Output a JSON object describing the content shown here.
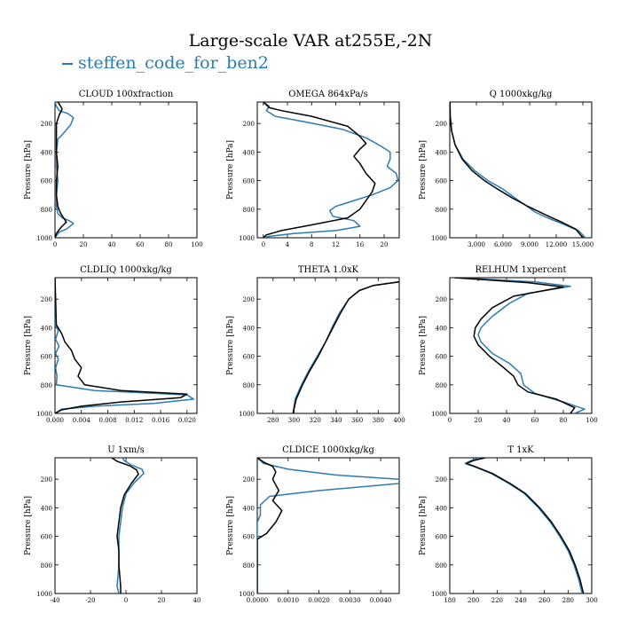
{
  "title": "Large-scale VAR at255E,-2N",
  "legend": {
    "label": "steffen_code_for_ben2",
    "color": "#2b7bb1"
  },
  "colors": {
    "case": "#2b7bb1",
    "reference": "#000000"
  },
  "chart_data": [
    {
      "type": "line",
      "title": "CLOUD  100xfraction",
      "ylabel": "Pressure [hPa]",
      "xlim": [
        0,
        100
      ],
      "ylim": [
        1000,
        50
      ],
      "xticks": [
        0,
        20,
        40,
        60,
        80,
        100
      ],
      "xtick_labels": [
        "0",
        "20",
        "40",
        "60",
        "80",
        "100"
      ],
      "yticks": [
        200,
        400,
        600,
        800,
        1000
      ],
      "ytick_labels": [
        "200",
        "400",
        "600",
        "800",
        "1000"
      ],
      "series": [
        {
          "color": "#2b7bb1",
          "x": [
            0,
            1,
            3,
            9,
            13,
            11,
            5,
            2,
            1,
            1,
            2,
            1,
            1,
            2,
            5,
            10,
            13,
            8,
            3,
            1,
            0
          ],
          "y": [
            50,
            80,
            110,
            130,
            160,
            210,
            280,
            310,
            400,
            500,
            600,
            700,
            780,
            830,
            860,
            880,
            900,
            940,
            960,
            985,
            1000
          ]
        },
        {
          "color": "#000000",
          "x": [
            2,
            4,
            5,
            3,
            1,
            1,
            1,
            2,
            1,
            1,
            2,
            4,
            6,
            8,
            4,
            1,
            0
          ],
          "y": [
            50,
            80,
            100,
            140,
            200,
            300,
            400,
            500,
            600,
            700,
            780,
            830,
            860,
            890,
            930,
            970,
            1000
          ]
        }
      ]
    },
    {
      "type": "line",
      "title": "OMEGA  864xPa/s",
      "ylabel": "Pressure [hPa]",
      "xlim": [
        -1,
        22.5
      ],
      "ylim": [
        1000,
        50
      ],
      "xticks": [
        0,
        4,
        8,
        12,
        16,
        20
      ],
      "xtick_labels": [
        "0",
        "4",
        "8",
        "12",
        "16",
        "20"
      ],
      "yticks": [
        200,
        400,
        600,
        800,
        1000
      ],
      "ytick_labels": [
        "200",
        "400",
        "600",
        "800",
        "1000"
      ],
      "series": [
        {
          "color": "#2b7bb1",
          "x": [
            0,
            1,
            0.5,
            2,
            7,
            13,
            17,
            19.5,
            21,
            21,
            20.5,
            22,
            22.3,
            21,
            18,
            15,
            12,
            11,
            11.5,
            15,
            16,
            12,
            5,
            1,
            0
          ],
          "y": [
            50,
            80,
            110,
            150,
            190,
            240,
            300,
            360,
            400,
            450,
            500,
            550,
            600,
            650,
            700,
            740,
            780,
            810,
            850,
            880,
            920,
            950,
            970,
            990,
            1000
          ]
        },
        {
          "color": "#000000",
          "x": [
            0,
            0.5,
            1,
            3,
            8,
            14,
            16,
            17,
            16,
            15,
            16,
            17,
            18.5,
            18,
            17,
            16,
            14,
            8,
            3,
            0.5,
            0
          ],
          "y": [
            50,
            70,
            90,
            110,
            150,
            220,
            290,
            340,
            380,
            430,
            480,
            550,
            620,
            680,
            740,
            800,
            860,
            910,
            950,
            980,
            1000
          ]
        }
      ]
    },
    {
      "type": "line",
      "title": "Q  1000xkg/kg",
      "ylabel": "Pressure [hPa]",
      "xlim": [
        0,
        16
      ],
      "ylim": [
        1000,
        50
      ],
      "xticks": [
        3,
        6,
        9,
        12,
        15
      ],
      "xtick_labels": [
        "3.000",
        "6.000",
        "9.000",
        "12.000",
        "15.000"
      ],
      "yticks": [
        200,
        400,
        600,
        800,
        1000
      ],
      "ytick_labels": [
        "200",
        "400",
        "600",
        "800",
        "1000"
      ],
      "series": [
        {
          "color": "#2b7bb1",
          "x": [
            0.02,
            0.05,
            0.2,
            0.6,
            1.5,
            2.8,
            4.3,
            6.0,
            7.3,
            8.5,
            9.6,
            11.0,
            13.0,
            14.5,
            15.3
          ],
          "y": [
            50,
            150,
            250,
            350,
            450,
            530,
            600,
            660,
            720,
            770,
            820,
            860,
            910,
            950,
            1000
          ]
        },
        {
          "color": "#000000",
          "x": [
            0.02,
            0.05,
            0.2,
            0.6,
            1.4,
            2.5,
            3.9,
            5.4,
            7.0,
            8.8,
            10.8,
            12.6,
            14.2,
            15.0
          ],
          "y": [
            50,
            150,
            250,
            350,
            450,
            530,
            600,
            660,
            720,
            780,
            840,
            890,
            940,
            1000
          ]
        }
      ]
    },
    {
      "type": "line",
      "title": "CLDLIQ  1000xkg/kg",
      "ylabel": "Pressure [hPa]",
      "xlim": [
        0,
        0.0215
      ],
      "ylim": [
        1000,
        50
      ],
      "xticks": [
        0,
        0.004,
        0.008,
        0.012,
        0.016,
        0.02
      ],
      "xtick_labels": [
        "0.000",
        "0.004",
        "0.008",
        "0.012",
        "0.016",
        "0.020"
      ],
      "yticks": [
        200,
        400,
        600,
        800,
        1000
      ],
      "ytick_labels": [
        "200",
        "400",
        "600",
        "800",
        "1000"
      ],
      "series": [
        {
          "color": "#2b7bb1",
          "x": [
            0,
            0,
            0.0005,
            0.0001,
            0.0006,
            0.0001,
            0.0005,
            0.0001,
            0.0003,
            0.0002,
            0.006,
            0.02,
            0.021,
            0.015,
            0.006,
            0.001,
            0
          ],
          "y": [
            50,
            380,
            420,
            480,
            530,
            580,
            620,
            680,
            740,
            800,
            840,
            870,
            900,
            930,
            950,
            970,
            1000
          ]
        },
        {
          "color": "#000000",
          "x": [
            0,
            0.0002,
            0.001,
            0.0015,
            0.0025,
            0.003,
            0.004,
            0.0035,
            0.0045,
            0.01,
            0.02,
            0.019,
            0.01,
            0.004,
            0.001,
            0
          ],
          "y": [
            50,
            380,
            440,
            500,
            560,
            620,
            680,
            740,
            800,
            840,
            865,
            890,
            920,
            950,
            975,
            1000
          ]
        }
      ]
    },
    {
      "type": "line",
      "title": "THETA  1.0xK",
      "ylabel": "Pressure [hPa]",
      "xlim": [
        265,
        400
      ],
      "ylim": [
        1000,
        50
      ],
      "xticks": [
        280,
        300,
        320,
        340,
        360,
        380,
        400
      ],
      "xtick_labels": [
        "280",
        "300",
        "320",
        "340",
        "360",
        "380",
        "400"
      ],
      "yticks": [
        200,
        400,
        600,
        800,
        1000
      ],
      "ytick_labels": [
        "200",
        "400",
        "600",
        "800",
        "1000"
      ],
      "series": [
        {
          "color": "#2b7bb1",
          "x": [
            400,
            390,
            375,
            362,
            352,
            343,
            336,
            330,
            322,
            314,
            307,
            301,
            299
          ],
          "y": [
            80,
            90,
            105,
            140,
            200,
            300,
            400,
            500,
            600,
            700,
            800,
            900,
            1000
          ]
        },
        {
          "color": "#000000",
          "x": [
            400,
            390,
            375,
            362,
            352,
            344,
            337,
            330,
            323,
            315,
            308,
            302,
            299
          ],
          "y": [
            80,
            90,
            105,
            140,
            200,
            300,
            400,
            500,
            600,
            700,
            800,
            900,
            1000
          ]
        }
      ]
    },
    {
      "type": "line",
      "title": "RELHUM  1xpercent",
      "ylabel": "Pressure [hPa]",
      "xlim": [
        0,
        100
      ],
      "ylim": [
        1000,
        50
      ],
      "xticks": [
        0,
        20,
        40,
        60,
        80,
        100
      ],
      "xtick_labels": [
        "0",
        "20",
        "40",
        "60",
        "80",
        "100"
      ],
      "yticks": [
        200,
        400,
        600,
        800,
        1000
      ],
      "ytick_labels": [
        "200",
        "400",
        "600",
        "800",
        "1000"
      ],
      "series": [
        {
          "color": "#2b7bb1",
          "x": [
            5,
            60,
            85,
            55,
            42,
            30,
            22,
            20,
            22,
            30,
            42,
            50,
            52,
            60,
            80,
            95,
            88
          ],
          "y": [
            50,
            80,
            110,
            160,
            230,
            320,
            400,
            450,
            500,
            580,
            650,
            720,
            800,
            860,
            920,
            970,
            1000
          ]
        },
        {
          "color": "#000000",
          "x": [
            3,
            55,
            80,
            45,
            30,
            22,
            18,
            17,
            20,
            28,
            38,
            45,
            48,
            55,
            75,
            88,
            85
          ],
          "y": [
            50,
            85,
            115,
            180,
            260,
            340,
            400,
            460,
            520,
            600,
            680,
            740,
            800,
            850,
            900,
            960,
            1000
          ]
        }
      ]
    },
    {
      "type": "line",
      "title": "U  1xm/s",
      "ylabel": "Pressure [hPa]",
      "xlim": [
        -40,
        40
      ],
      "ylim": [
        1000,
        50
      ],
      "xticks": [
        -40,
        -20,
        0,
        20,
        40
      ],
      "xtick_labels": [
        "-40",
        "-20",
        "0",
        "20",
        "40"
      ],
      "yticks": [
        200,
        400,
        600,
        800,
        1000
      ],
      "ytick_labels": [
        "200",
        "400",
        "600",
        "800",
        "1000"
      ],
      "series": [
        {
          "color": "#2b7bb1",
          "x": [
            -2,
            -1,
            3,
            9,
            10,
            5,
            0,
            -2,
            -3,
            -4,
            -4,
            -4,
            -5,
            -4
          ],
          "y": [
            50,
            70,
            100,
            130,
            160,
            220,
            300,
            400,
            500,
            600,
            700,
            800,
            950,
            1000
          ]
        },
        {
          "color": "#000000",
          "x": [
            -8,
            -5,
            2,
            6,
            7,
            3,
            -1,
            -3,
            -4,
            -5,
            -4,
            -4,
            -3,
            -3
          ],
          "y": [
            50,
            75,
            105,
            135,
            165,
            230,
            310,
            400,
            500,
            600,
            700,
            800,
            950,
            1000
          ]
        }
      ]
    },
    {
      "type": "line",
      "title": "CLDICE  1000xkg/kg",
      "ylabel": "Pressure [hPa]",
      "xlim": [
        0,
        0.0046
      ],
      "ylim": [
        1000,
        50
      ],
      "xticks": [
        0,
        0.001,
        0.002,
        0.003,
        0.004
      ],
      "xtick_labels": [
        "0.0000",
        "0.0010",
        "0.0020",
        "0.0030",
        "0.0040"
      ],
      "yticks": [
        200,
        400,
        600,
        800,
        1000
      ],
      "ytick_labels": [
        "200",
        "400",
        "600",
        "800",
        "1000"
      ],
      "series": [
        {
          "color": "#2b7bb1",
          "x": [
            0,
            0.0002,
            0.001,
            0.0025,
            0.0046,
            0.0046,
            0.002,
            0.0004,
            0.0001,
            0.0001,
            0,
            0
          ],
          "y": [
            50,
            90,
            130,
            170,
            200,
            230,
            280,
            320,
            380,
            450,
            500,
            1000
          ]
        },
        {
          "color": "#000000",
          "x": [
            0,
            0.0002,
            0.0005,
            0.0006,
            0.0005,
            0.0007,
            0.0005,
            0.0008,
            0.0006,
            0.0003,
            0,
            0
          ],
          "y": [
            50,
            80,
            110,
            150,
            200,
            280,
            350,
            420,
            500,
            580,
            620,
            1000
          ]
        }
      ]
    },
    {
      "type": "line",
      "title": "T  1xK",
      "ylabel": "Pressure [hPa]",
      "xlim": [
        180,
        300
      ],
      "ylim": [
        1000,
        50
      ],
      "xticks": [
        180,
        200,
        220,
        240,
        260,
        280,
        300
      ],
      "xtick_labels": [
        "180",
        "200",
        "220",
        "240",
        "260",
        "280",
        "300"
      ],
      "yticks": [
        200,
        400,
        600,
        800,
        1000
      ],
      "ytick_labels": [
        "200",
        "400",
        "600",
        "800",
        "1000"
      ],
      "series": [
        {
          "color": "#2b7bb1",
          "x": [
            205,
            198,
            193,
            200,
            215,
            230,
            243,
            255,
            265,
            273,
            280,
            285,
            289,
            292
          ],
          "y": [
            50,
            70,
            90,
            110,
            160,
            230,
            300,
            400,
            500,
            600,
            700,
            800,
            900,
            1000
          ]
        },
        {
          "color": "#000000",
          "x": [
            210,
            200,
            194,
            201,
            216,
            231,
            244,
            256,
            266,
            274,
            281,
            286,
            290,
            293
          ],
          "y": [
            50,
            70,
            90,
            110,
            160,
            230,
            300,
            400,
            500,
            600,
            700,
            800,
            900,
            1000
          ]
        }
      ]
    }
  ]
}
